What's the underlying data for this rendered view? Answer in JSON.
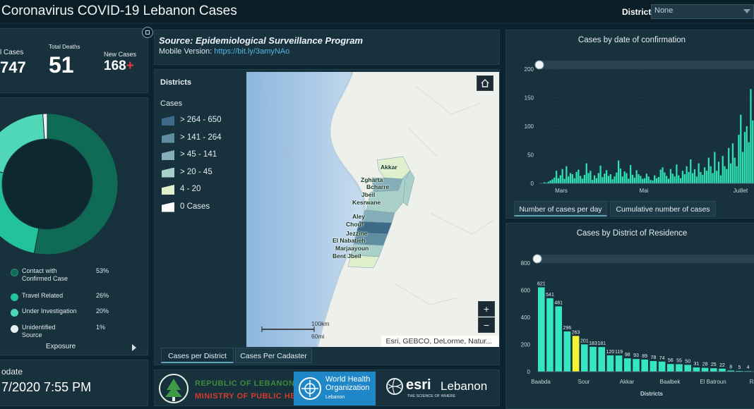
{
  "header": {
    "title": "Coronavirus COVID-19 Lebanon Cases",
    "district_label": "District",
    "district_value": "None"
  },
  "stats": {
    "total_cases_label": "l Cases",
    "total_cases_value": "747",
    "total_deaths_label": "Total Deaths",
    "total_deaths_value": "51",
    "new_cases_label": "New Cases",
    "new_cases_value": "168",
    "new_cases_marker": "+"
  },
  "exposure": {
    "title": "Exposure",
    "items": [
      {
        "label": "Contact with\nConfirmed Case",
        "pct": "53%",
        "color": "#0f6b55",
        "share": 53
      },
      {
        "label": "Travel Related",
        "pct": "26%",
        "color": "#23c29a",
        "share": 26
      },
      {
        "label": "Under Investigation",
        "pct": "20%",
        "color": "#4fd7b7",
        "share": 20
      },
      {
        "label": "Unidentified\nSource",
        "pct": "1%",
        "color": "#e8f1ee",
        "share": 1
      }
    ]
  },
  "update": {
    "label": "odate",
    "value": "7/2020 7:55 PM"
  },
  "source": {
    "line1": "Source: Epidemiological Surveillance Program",
    "mobile_label": "Mobile Version: ",
    "mobile_link": "https://bit.ly/3amyNAo"
  },
  "map_legend": {
    "title": "Districts",
    "subtitle": "Cases",
    "bins": [
      {
        "label": "> 264 - 650",
        "color": "#3d6a86"
      },
      {
        "label": "> 141 - 264",
        "color": "#5f8ea3"
      },
      {
        "label": "> 45 - 141",
        "color": "#84aeb9"
      },
      {
        "label": "> 20 - 45",
        "color": "#a9cfc9"
      },
      {
        "label": "4 - 20",
        "color": "#dff0cc"
      },
      {
        "label": "0 Cases",
        "color": "#ffffff"
      }
    ]
  },
  "map": {
    "place_labels": [
      "Akkar",
      "Zgharta",
      "Bcharre",
      "Jbeil",
      "Kesrwane",
      "Aley",
      "Chouf",
      "Jezzine",
      "El Nabatieh",
      "Marjaayoun",
      "Bent Jbeil"
    ],
    "scale_km": "100km",
    "scale_mi": "60mi",
    "attribution": "Esri, GEBCO, DeLorme, Natur...",
    "zoom_in": "+",
    "zoom_out": "−"
  },
  "map_tabs": {
    "tab1": "Cases per District",
    "tab2": "Cases Per Cadaster"
  },
  "logos": {
    "republic_line1": "REPUBLIC OF LEBANON",
    "republic_line2": "MINISTRY OF PUBLIC HEALTH",
    "who_line1": "World Health",
    "who_line2": "Organization",
    "who_line3": "Lebanon",
    "esri_brand": "esri",
    "esri_country": "Lebanon",
    "esri_tagline": "THE SCIENCE OF WHERE"
  },
  "chart_tabs": {
    "tab1": "Number of cases per day",
    "tab2": "Cumulative number of cases"
  },
  "chart_data": [
    {
      "type": "bar",
      "title": "Cases by  date of confirmation",
      "ylim": [
        0,
        200
      ],
      "yticks": [
        0,
        50,
        100,
        150,
        200
      ],
      "x_tick_labels": [
        "Mars",
        "Mai",
        "Juillet"
      ],
      "values": [
        2,
        1,
        3,
        5,
        7,
        10,
        22,
        9,
        14,
        25,
        8,
        30,
        12,
        18,
        16,
        9,
        20,
        24,
        13,
        8,
        15,
        35,
        18,
        22,
        6,
        14,
        9,
        18,
        31,
        11,
        17,
        23,
        13,
        16,
        7,
        12,
        19,
        40,
        26,
        12,
        21,
        18,
        8,
        32,
        15,
        10,
        23,
        16,
        13,
        8,
        9,
        17,
        12,
        6,
        5,
        14,
        9,
        11,
        24,
        28,
        19,
        13,
        8,
        25,
        17,
        12,
        33,
        14,
        9,
        22,
        16,
        30,
        20,
        42,
        18,
        25,
        12,
        35,
        20,
        15,
        28,
        22,
        45,
        30,
        18,
        55,
        22,
        38,
        14,
        48,
        30,
        25,
        62,
        35,
        70,
        45,
        30,
        85,
        120,
        55,
        90,
        100,
        72,
        165,
        110
      ],
      "ylabel": "",
      "xlabel": ""
    },
    {
      "type": "bar",
      "title": "Cases by District of Residence",
      "xlabel": "Districts",
      "ylim": [
        0,
        800
      ],
      "yticks": [
        0,
        200,
        400,
        600,
        800
      ],
      "x_tick_labels": [
        "Baabda",
        "Sour",
        "Akkar",
        "Baalbek",
        "El Batroun",
        "Rach"
      ],
      "values": [
        621,
        541,
        481,
        296,
        263,
        201,
        183,
        181,
        120,
        119,
        98,
        93,
        89,
        78,
        74,
        56,
        55,
        50,
        31,
        28,
        25,
        22,
        8,
        5,
        4
      ],
      "highlight_index": 4,
      "highlight_color": "#f4f433",
      "bar_color": "#35e6c0"
    }
  ]
}
